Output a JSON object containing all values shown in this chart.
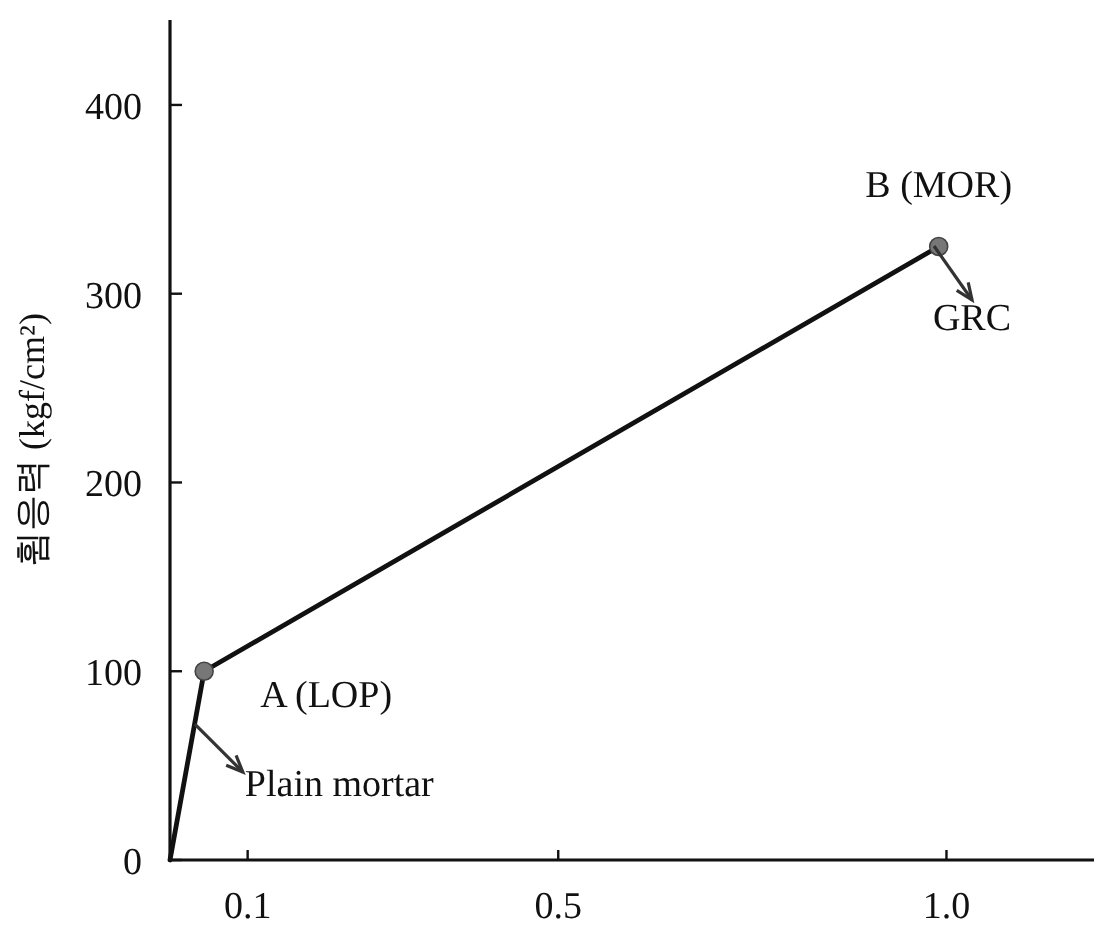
{
  "chart_data": {
    "type": "line",
    "ylabel": "휨응력 (kgf/cm²)",
    "xlim": [
      0,
      1.19
    ],
    "ylim": [
      0,
      445
    ],
    "xticks": [
      0.1,
      0.5,
      {
        "value": 1,
        "label": "1.0"
      }
    ],
    "yticks": [
      0,
      100,
      200,
      300,
      400
    ],
    "grid": false,
    "series": [
      {
        "color": "#111111",
        "marker": "none",
        "x": [
          0,
          0.044,
          0.99
        ],
        "values": [
          0,
          100,
          325
        ]
      },
      {
        "type": "scatter",
        "color": "#777777",
        "marker": "circle",
        "x": [
          0.044,
          0.99
        ],
        "values": [
          100,
          325
        ]
      }
    ],
    "annotations": [
      {
        "text": "A (LOP)",
        "x": 0.044,
        "y": 100
      },
      {
        "text": "B (MOR)",
        "x": 0.99,
        "y": 325
      },
      {
        "text": "Plain mortar",
        "x": 0.032,
        "y": 72
      },
      "GRC"
    ]
  }
}
